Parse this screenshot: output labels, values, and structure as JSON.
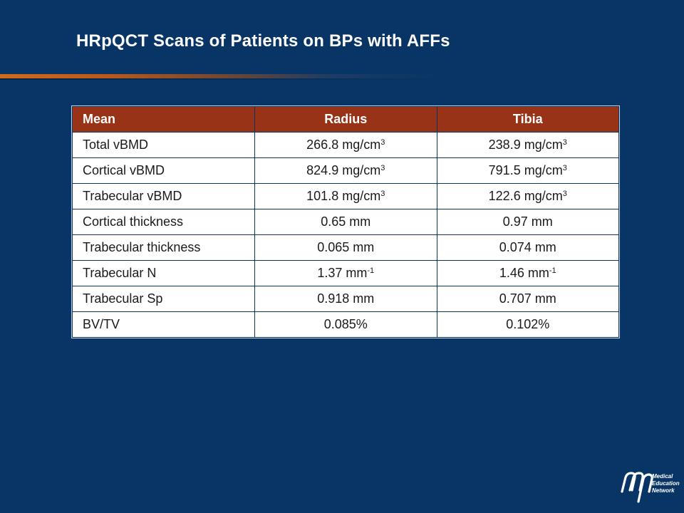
{
  "slide": {
    "title": "HRpQCT Scans of Patients on BPs with AFFs"
  },
  "table": {
    "headers": [
      "Mean",
      "Radius",
      "Tibia"
    ],
    "rows": [
      {
        "label": "Total vBMD",
        "radius": "266.8 mg/cm",
        "radius_sup": "3",
        "tibia": "238.9 mg/cm",
        "tibia_sup": "3"
      },
      {
        "label": "Cortical vBMD",
        "radius": "824.9 mg/cm",
        "radius_sup": "3",
        "tibia": "791.5 mg/cm",
        "tibia_sup": "3"
      },
      {
        "label": "Trabecular vBMD",
        "radius": "101.8 mg/cm",
        "radius_sup": "3",
        "tibia": "122.6 mg/cm",
        "tibia_sup": "3"
      },
      {
        "label": "Cortical thickness",
        "radius": "0.65 mm",
        "radius_sup": "",
        "tibia": "0.97 mm",
        "tibia_sup": ""
      },
      {
        "label": "Trabecular thickness",
        "radius": "0.065 mm",
        "radius_sup": "",
        "tibia": "0.074 mm",
        "tibia_sup": ""
      },
      {
        "label": "Trabecular N",
        "radius": "1.37 mm",
        "radius_sup": "-1",
        "tibia": "1.46 mm",
        "tibia_sup": "-1"
      },
      {
        "label": "Trabecular Sp",
        "radius": "0.918 mm",
        "radius_sup": "",
        "tibia": "0.707 mm",
        "tibia_sup": ""
      },
      {
        "label": "BV/TV",
        "radius": "0.085%",
        "radius_sup": "",
        "tibia": "0.102%",
        "tibia_sup": ""
      }
    ]
  },
  "logo": {
    "icon": "men-logo-icon",
    "text": "Medical\nEducation\nNetwork"
  },
  "colors": {
    "background": "#083565",
    "header": "#993318",
    "accent_rule": "#d06a1c"
  }
}
